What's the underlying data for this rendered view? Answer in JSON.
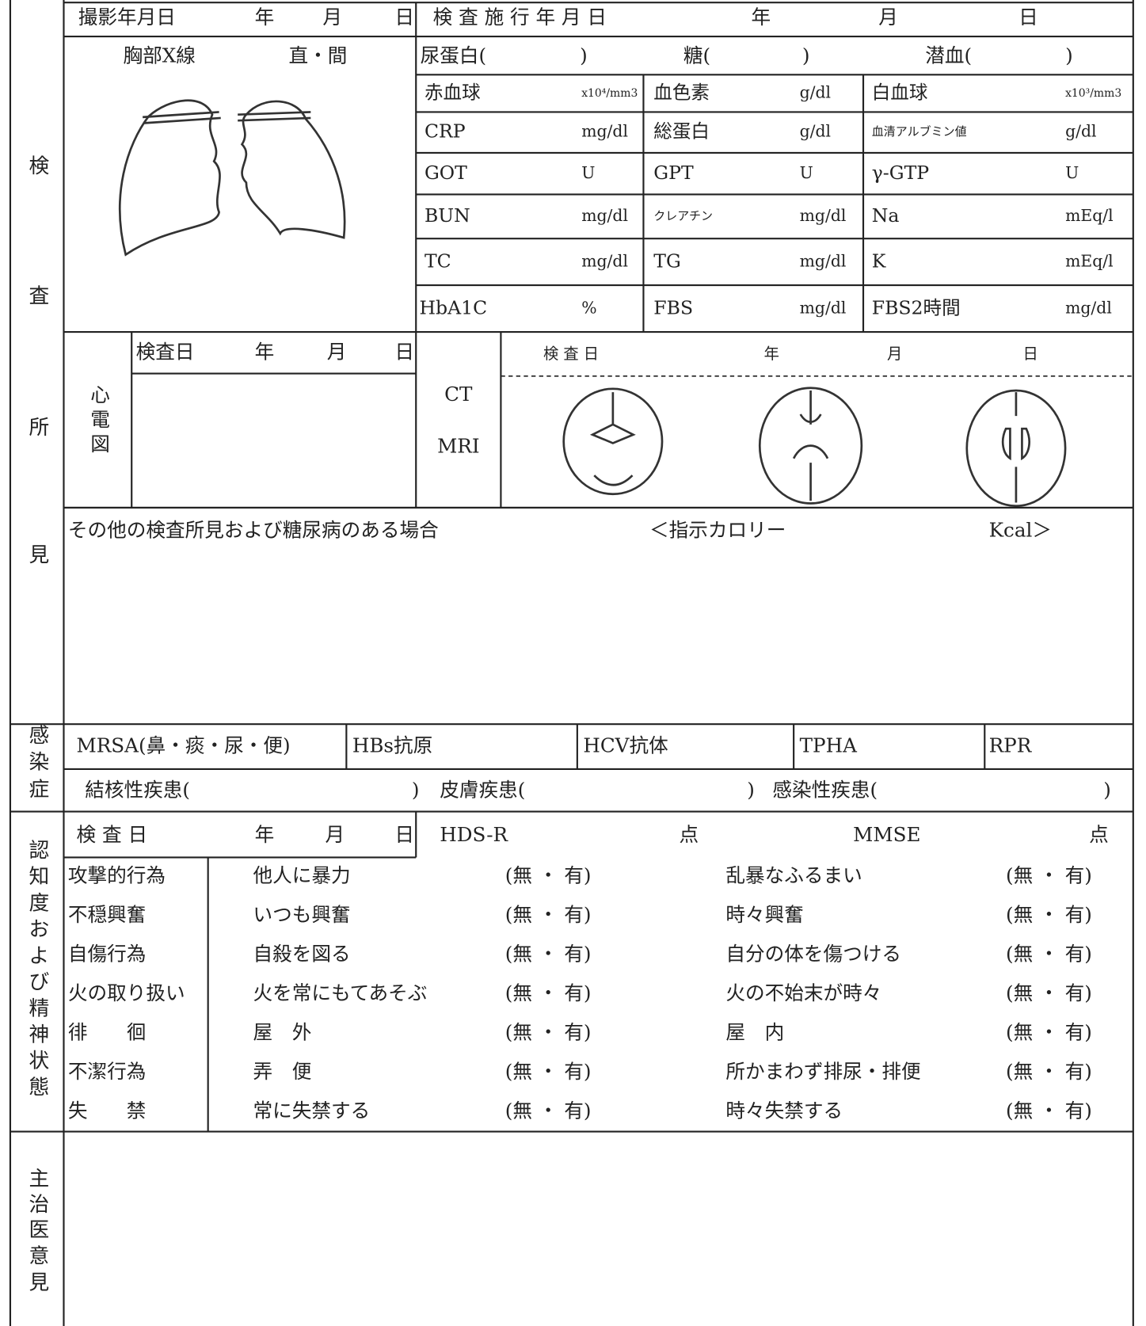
{
  "side_labels": {
    "examination": [
      "検",
      "査",
      "所",
      "見"
    ],
    "infection": [
      "感",
      "染",
      "症"
    ],
    "cognition": [
      "認",
      "知",
      "度",
      "お",
      "よ",
      "び",
      "精",
      "神",
      "状",
      "態"
    ],
    "opinion": [
      "主",
      "治",
      "医",
      "意",
      "見"
    ]
  },
  "xray": {
    "date_label": "撮影年月日",
    "year": "年",
    "month": "月",
    "day": "日",
    "title": "胸部X線",
    "view": "直・間"
  },
  "lab": {
    "date_label": "検 査 施 行 年 月 日",
    "year": "年",
    "month": "月",
    "day": "日",
    "urine": [
      "尿蛋白(",
      ")",
      "糖(",
      ")",
      "潜血(",
      ")"
    ],
    "rows": [
      [
        [
          "赤血球",
          "x10⁴/mm3"
        ],
        [
          "血色素",
          "g/dl"
        ],
        [
          "白血球",
          "x10³/mm3"
        ]
      ],
      [
        [
          "CRP",
          "mg/dl"
        ],
        [
          "総蛋白",
          "g/dl"
        ],
        [
          "血清アルブミン値",
          "g/dl"
        ]
      ],
      [
        [
          "GOT",
          "U"
        ],
        [
          "GPT",
          "U"
        ],
        [
          "γ-GTP",
          "U"
        ]
      ],
      [
        [
          "BUN",
          "mg/dl"
        ],
        [
          "クレアチン",
          "mg/dl"
        ],
        [
          "Na",
          "mEq/l"
        ]
      ],
      [
        [
          "TC",
          "mg/dl"
        ],
        [
          "TG",
          "mg/dl"
        ],
        [
          "K",
          "mEq/l"
        ]
      ],
      [
        [
          "HbA1C",
          "%"
        ],
        [
          "FBS",
          "mg/dl"
        ],
        [
          "FBS2時間",
          "mg/dl"
        ]
      ]
    ]
  },
  "ecg": {
    "date_label": "検査日",
    "year": "年",
    "month": "月",
    "day": "日",
    "title": [
      "心",
      "電",
      "図"
    ]
  },
  "ct": {
    "modalities": [
      "CT",
      "MRI"
    ],
    "date_label": "検 査 日",
    "year": "年",
    "month": "月",
    "day": "日"
  },
  "other": {
    "title": "その他の検査所見および糖尿病のある場合",
    "calorie_open": "＜指示カロリー",
    "calorie_unit": "Kcal＞"
  },
  "infection": {
    "tests": [
      "MRSA(鼻・痰・尿・便)",
      "HBs抗原",
      "HCV抗体",
      "TPHA",
      "RPR"
    ],
    "diseases": [
      "結核性疾患(",
      ")",
      "皮膚疾患(",
      ")",
      "感染性疾患(",
      ")"
    ]
  },
  "cognition": {
    "date_label": "検 査 日",
    "year": "年",
    "month": "月",
    "day": "日",
    "hdsr": "HDS-R",
    "hdsr_unit": "点",
    "mmse": "MMSE",
    "mmse_unit": "点",
    "rows": [
      [
        "攻撃的行為",
        "他人に暴力",
        "(無 ・ 有)",
        "乱暴なふるまい",
        "(無 ・ 有)"
      ],
      [
        "不穏興奮",
        "いつも興奮",
        "(無 ・ 有)",
        "時々興奮",
        "(無 ・ 有)"
      ],
      [
        "自傷行為",
        "自殺を図る",
        "(無 ・ 有)",
        "自分の体を傷つける",
        "(無 ・ 有)"
      ],
      [
        "火の取り扱い",
        "火を常にもてあそぶ",
        "(無 ・ 有)",
        "火の不始末が時々",
        "(無 ・ 有)"
      ],
      [
        "徘　　徊",
        "屋　外",
        "(無 ・ 有)",
        "屋　内",
        "(無 ・ 有)"
      ],
      [
        "不潔行為",
        "弄　便",
        "(無 ・ 有)",
        "所かまわず排尿・排便",
        "(無 ・ 有)"
      ],
      [
        "失　　禁",
        "常に失禁する",
        "(無 ・ 有)",
        "時々失禁する",
        "(無 ・ 有)"
      ]
    ]
  }
}
